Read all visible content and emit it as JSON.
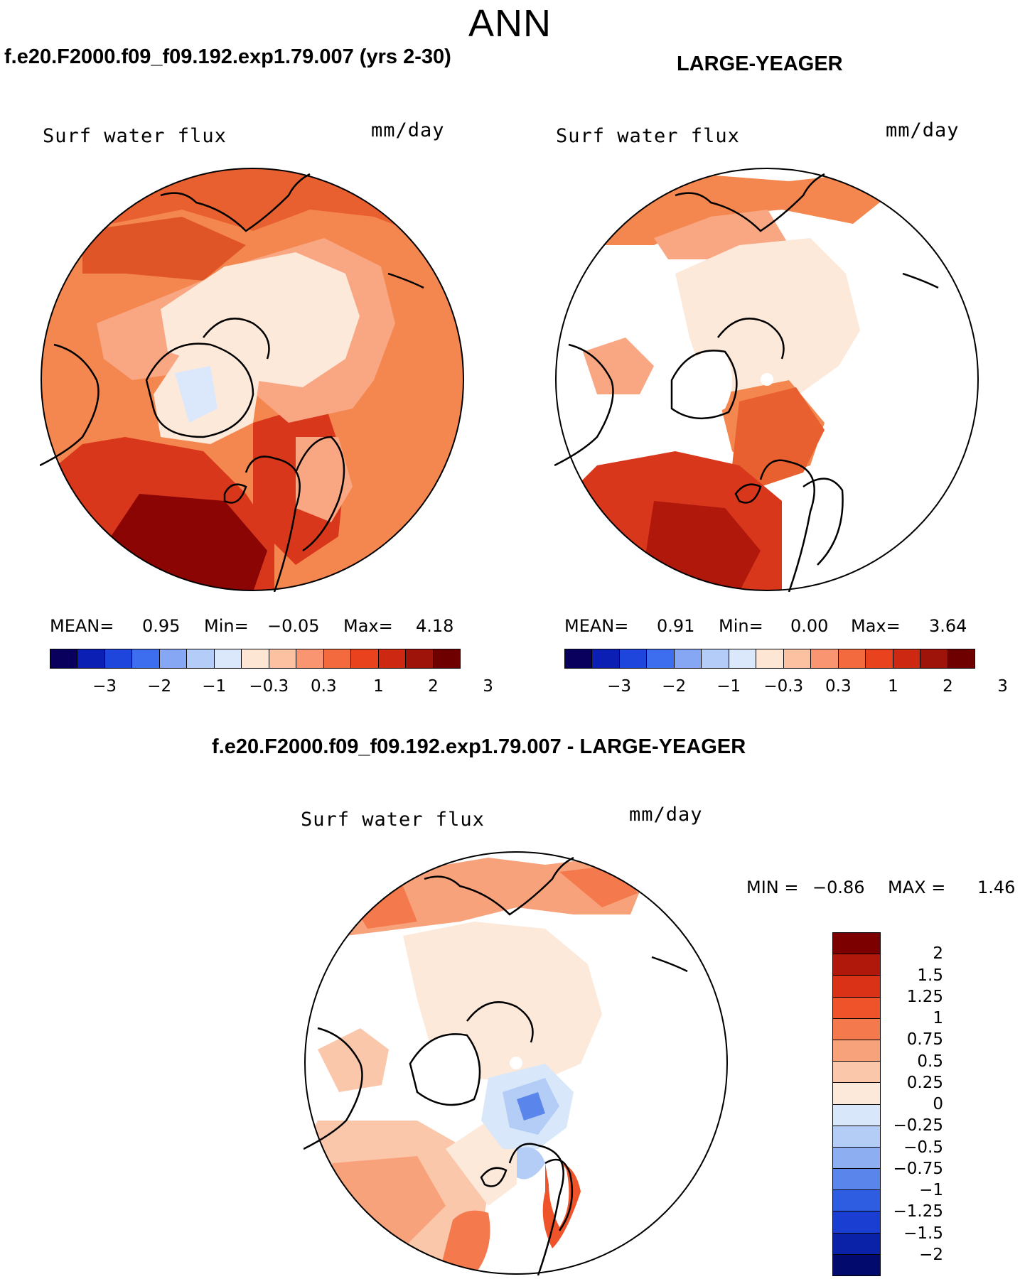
{
  "page_title": "ANN",
  "panels": {
    "left": {
      "title": "f.e20.F2000.f09_f09.192.exp1.79.007 (yrs 2-30)",
      "variable": "Surf water flux",
      "units": "mm/day",
      "mean_label": "MEAN=",
      "mean_value": "0.95",
      "min_label": "Min=",
      "min_value": "−0.05",
      "max_label": "Max=",
      "max_value": "4.18"
    },
    "right": {
      "title": "LARGE-YEAGER",
      "variable": "Surf water flux",
      "units": "mm/day",
      "mean_label": "MEAN=",
      "mean_value": "0.91",
      "min_label": "Min=",
      "min_value": "0.00",
      "max_label": "Max=",
      "max_value": "3.64"
    },
    "diff": {
      "title": "f.e20.F2000.f09_f09.192.exp1.79.007 - LARGE-YEAGER",
      "variable": "Surf water flux",
      "units": "mm/day",
      "min_label": "MIN =",
      "min_value": "−0.86",
      "max_label": "MAX =",
      "max_value": "1.46"
    }
  },
  "horizontal_colorbar": {
    "tick_labels": [
      "−3",
      "−2",
      "−1",
      "−0.3",
      "0.3",
      "1",
      "2",
      "3"
    ],
    "colors": [
      "#08005c",
      "#0c1fb4",
      "#1e45dc",
      "#3e6ef0",
      "#86a8f4",
      "#b4cdf8",
      "#dbe8fb",
      "#fde6d4",
      "#fcc1a0",
      "#f99570",
      "#f26a3e",
      "#e8421e",
      "#cc2812",
      "#9e130a",
      "#6e0000"
    ]
  },
  "vertical_colorbar": {
    "tick_labels": [
      "2",
      "1.5",
      "1.25",
      "1",
      "0.75",
      "0.5",
      "0.25",
      "0",
      "−0.25",
      "−0.5",
      "−0.75",
      "−1",
      "−1.25",
      "−1.5",
      "−2"
    ],
    "colors": [
      "#7d0000",
      "#b0180c",
      "#d93217",
      "#ef5329",
      "#f4794c",
      "#f8a27c",
      "#fbc7ab",
      "#fde9da",
      "#d8e7fa",
      "#b3cdf6",
      "#8daef1",
      "#5a86eb",
      "#2f5de2",
      "#1a3ed2",
      "#0a22a8",
      "#020a6e"
    ]
  },
  "colors": {
    "ocean_warm": "#f6875a",
    "ocean_hot": "#d2311b",
    "ocean_max": "#8c0505",
    "arctic_pale": "#fde9da",
    "moderate": "#f9a683",
    "coast": "#000000"
  }
}
